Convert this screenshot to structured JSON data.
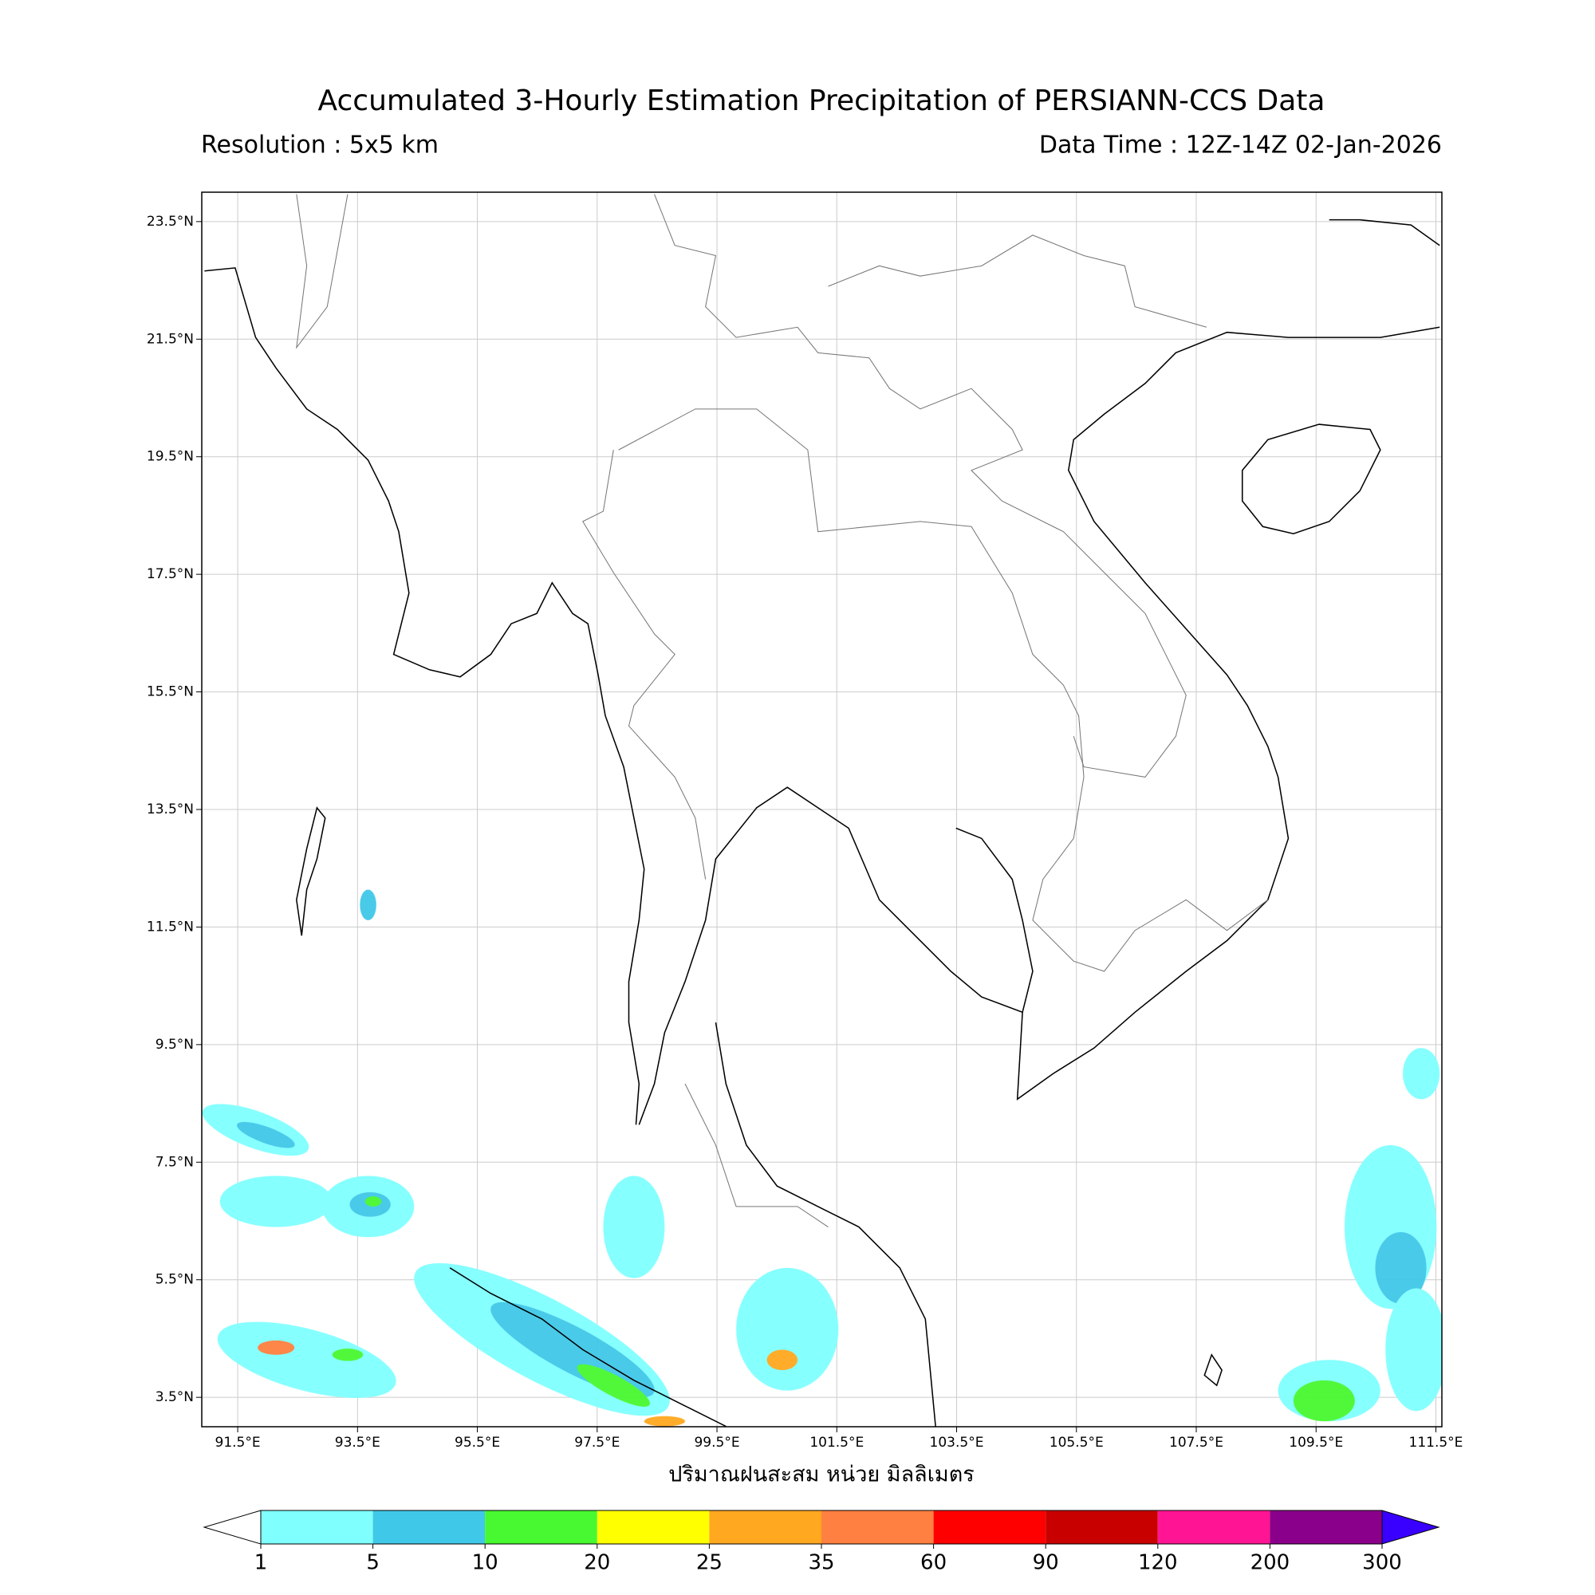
{
  "map": {
    "title": "Accumulated 3-Hourly Estimation Precipitation of PERSIANN-CCS Data",
    "subtitle_left": "Resolution : 5x5 km",
    "subtitle_right": "Data Time : 12Z-14Z 02-Jan-2026",
    "xlim": [
      90.9,
      111.6
    ],
    "ylim": [
      3.0,
      24.0
    ],
    "xticks": [
      {
        "value": 91.5,
        "label": "91.5°E"
      },
      {
        "value": 93.5,
        "label": "93.5°E"
      },
      {
        "value": 95.5,
        "label": "95.5°E"
      },
      {
        "value": 97.5,
        "label": "97.5°E"
      },
      {
        "value": 99.5,
        "label": "99.5°E"
      },
      {
        "value": 101.5,
        "label": "101.5°E"
      },
      {
        "value": 103.5,
        "label": "103.5°E"
      },
      {
        "value": 105.5,
        "label": "105.5°E"
      },
      {
        "value": 107.5,
        "label": "107.5°E"
      },
      {
        "value": 109.5,
        "label": "109.5°E"
      },
      {
        "value": 111.5,
        "label": "111.5°E"
      }
    ],
    "yticks": [
      {
        "value": 3.5,
        "label": "3.5°N"
      },
      {
        "value": 5.5,
        "label": "5.5°N"
      },
      {
        "value": 7.5,
        "label": "7.5°N"
      },
      {
        "value": 9.5,
        "label": "9.5°N"
      },
      {
        "value": 11.5,
        "label": "11.5°N"
      },
      {
        "value": 13.5,
        "label": "13.5°N"
      },
      {
        "value": 15.5,
        "label": "15.5°N"
      },
      {
        "value": 17.5,
        "label": "17.5°N"
      },
      {
        "value": 19.5,
        "label": "19.5°N"
      },
      {
        "value": 21.5,
        "label": "21.5°N"
      },
      {
        "value": 23.5,
        "label": "23.5°N"
      }
    ],
    "grid": true,
    "colorbar": {
      "label": "ปริมาณฝนสะสม หน่วย มิลลิเมตร",
      "levels": [
        1,
        5,
        10,
        20,
        25,
        35,
        60,
        90,
        120,
        200,
        300
      ],
      "colors": [
        "#80ffff",
        "#40c8e8",
        "#48f830",
        "#ffff00",
        "#ffa820",
        "#ff8040",
        "#ff0000",
        "#c80000",
        "#ff1493",
        "#8b008b"
      ],
      "under_color": "#ffffff",
      "over_color": "#3a00ff"
    }
  }
}
